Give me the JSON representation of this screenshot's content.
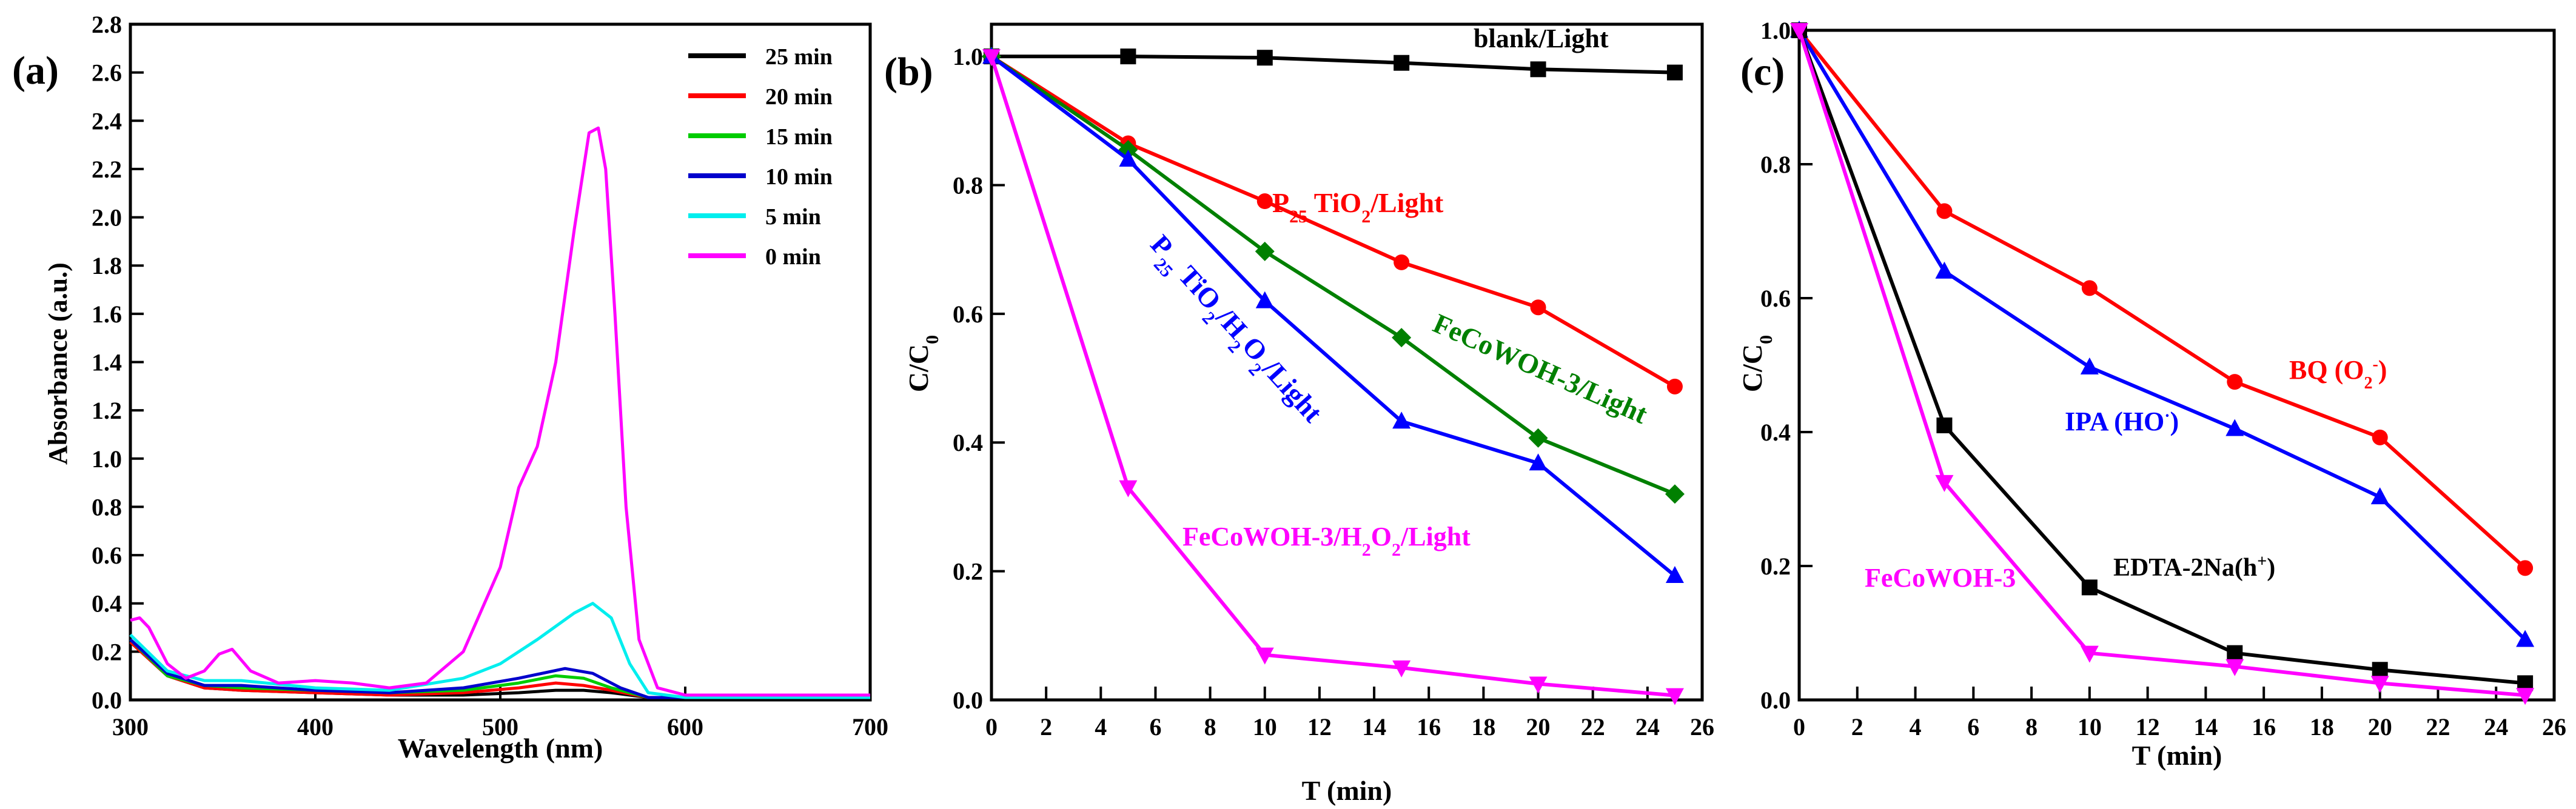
{
  "chart_data": [
    {
      "panel": "(a)",
      "type": "line",
      "xlabel": "Wavelength (nm)",
      "ylabel": "Absorbance (a.u.)",
      "xlim": [
        300,
        700
      ],
      "ylim": [
        0,
        2.8
      ],
      "xticks": [
        "300",
        "400",
        "500",
        "600",
        "700"
      ],
      "yticks": [
        "0.0",
        "0.2",
        "0.4",
        "0.6",
        "0.8",
        "1.0",
        "1.2",
        "1.4",
        "1.6",
        "1.8",
        "2.0",
        "2.2",
        "2.4",
        "2.6",
        "2.8"
      ],
      "legend_placement": "top-right",
      "grid": false,
      "series": [
        {
          "name": "25 min",
          "color": "#000000",
          "x": [
            300,
            320,
            340,
            360,
            400,
            440,
            480,
            510,
            530,
            545,
            560,
            580,
            600,
            700
          ],
          "y": [
            0.24,
            0.1,
            0.05,
            0.04,
            0.03,
            0.02,
            0.02,
            0.03,
            0.04,
            0.04,
            0.03,
            0.01,
            0.01,
            0.01
          ]
        },
        {
          "name": "20 min",
          "color": "#ff0000",
          "x": [
            300,
            320,
            340,
            360,
            400,
            440,
            480,
            510,
            530,
            545,
            560,
            580,
            600,
            700
          ],
          "y": [
            0.24,
            0.1,
            0.05,
            0.04,
            0.03,
            0.02,
            0.03,
            0.05,
            0.07,
            0.06,
            0.04,
            0.01,
            0.01,
            0.01
          ]
        },
        {
          "name": "15 min",
          "color": "#00cc00",
          "x": [
            300,
            320,
            340,
            360,
            400,
            440,
            480,
            510,
            530,
            545,
            560,
            580,
            600,
            700
          ],
          "y": [
            0.25,
            0.1,
            0.06,
            0.05,
            0.04,
            0.03,
            0.04,
            0.07,
            0.1,
            0.09,
            0.05,
            0.01,
            0.01,
            0.01
          ]
        },
        {
          "name": "10 min",
          "color": "#0000cc",
          "x": [
            300,
            320,
            340,
            360,
            400,
            440,
            480,
            510,
            535,
            550,
            565,
            580,
            600,
            700
          ],
          "y": [
            0.25,
            0.11,
            0.06,
            0.06,
            0.04,
            0.03,
            0.05,
            0.09,
            0.13,
            0.11,
            0.05,
            0.01,
            0.01,
            0.01
          ]
        },
        {
          "name": "5 min",
          "color": "#00eeee",
          "x": [
            300,
            320,
            340,
            360,
            400,
            440,
            480,
            500,
            520,
            540,
            550,
            560,
            570,
            580,
            600,
            700
          ],
          "y": [
            0.27,
            0.12,
            0.08,
            0.08,
            0.05,
            0.04,
            0.09,
            0.15,
            0.25,
            0.36,
            0.4,
            0.34,
            0.15,
            0.03,
            0.01,
            0.01
          ]
        },
        {
          "name": "0 min",
          "color": "#ff00ff",
          "x": [
            300,
            305,
            310,
            320,
            330,
            340,
            348,
            355,
            365,
            380,
            400,
            420,
            440,
            460,
            480,
            500,
            510,
            520,
            530,
            540,
            548,
            553,
            557,
            562,
            568,
            575,
            585,
            600,
            650,
            700
          ],
          "y": [
            0.33,
            0.34,
            0.3,
            0.15,
            0.09,
            0.12,
            0.19,
            0.21,
            0.12,
            0.07,
            0.08,
            0.07,
            0.05,
            0.07,
            0.2,
            0.55,
            0.88,
            1.05,
            1.4,
            1.95,
            2.35,
            2.37,
            2.2,
            1.6,
            0.8,
            0.25,
            0.05,
            0.02,
            0.02,
            0.02
          ]
        }
      ]
    },
    {
      "panel": "(b)",
      "type": "line",
      "xlabel": "T (min)",
      "ylabel": "C/C",
      "ylabel_sub": "0",
      "xlim": [
        0,
        26
      ],
      "ylim": [
        0,
        1.05
      ],
      "xticks": [
        "0",
        "2",
        "4",
        "6",
        "8",
        "10",
        "12",
        "14",
        "16",
        "18",
        "20",
        "22",
        "24",
        "26"
      ],
      "yticks": [
        "0.0",
        "0.2",
        "0.4",
        "0.6",
        "0.8",
        "1.0"
      ],
      "grid": false,
      "series": [
        {
          "label_main": "blank/Light",
          "color": "#000000",
          "marker": "square",
          "x": [
            0,
            5,
            10,
            15,
            20,
            25
          ],
          "y": [
            1.0,
            1.0,
            0.998,
            0.99,
            0.98,
            0.975
          ]
        },
        {
          "label_main": "P25 TiO2/Light",
          "color": "#ff0000",
          "marker": "circle",
          "x": [
            0,
            5,
            10,
            15,
            20,
            25
          ],
          "y": [
            1.0,
            0.865,
            0.775,
            0.68,
            0.61,
            0.487
          ]
        },
        {
          "label_main": "FeCoWOH-3/Light",
          "color": "#008000",
          "marker": "diamond",
          "x": [
            0,
            5,
            10,
            15,
            20,
            25
          ],
          "y": [
            1.0,
            0.855,
            0.697,
            0.563,
            0.407,
            0.32
          ]
        },
        {
          "label_main": "P25 TiO2/H2O2/Light",
          "color": "#0000ff",
          "marker": "triangle-up",
          "x": [
            0,
            5,
            10,
            15,
            20,
            25
          ],
          "y": [
            1.0,
            0.84,
            0.62,
            0.433,
            0.368,
            0.193
          ]
        },
        {
          "label_main": "FeCoWOH-3/H2O2/Light",
          "color": "#ff00ff",
          "marker": "triangle-down",
          "x": [
            0,
            5,
            10,
            15,
            20,
            25
          ],
          "y": [
            1.0,
            0.33,
            0.07,
            0.05,
            0.025,
            0.007
          ]
        }
      ],
      "annotations": {
        "blank_light": "blank/Light",
        "p25_light": {
          "p": "P",
          "sub25": "25",
          "tio": " TiO",
          "sub2": "2",
          "rest": "/Light"
        },
        "fecowoh_light": "FeCoWOH-3/Light",
        "p25_h2o2": {
          "p": "P",
          "sub25": "25",
          "tio": " TiO",
          "sub2a": "2",
          "h": "/H",
          "sub2b": "2",
          "o": "O",
          "sub2c": "2",
          "rest": "/Light"
        },
        "fecowoh_h2o2": {
          "pre": "FeCoWOH-3/H",
          "sub2a": "2",
          "o": "O",
          "sub2b": "2",
          "rest": "/Light"
        }
      }
    },
    {
      "panel": "(c)",
      "type": "line",
      "xlabel": "T (min)",
      "ylabel": "C/C",
      "ylabel_sub": "0",
      "xlim": [
        0,
        26
      ],
      "ylim": [
        0,
        1.0
      ],
      "xticks": [
        "0",
        "2",
        "4",
        "6",
        "8",
        "10",
        "12",
        "14",
        "16",
        "18",
        "20",
        "22",
        "24",
        "26"
      ],
      "yticks": [
        "0.0",
        "0.2",
        "0.4",
        "0.6",
        "0.8",
        "1.0"
      ],
      "grid": false,
      "series": [
        {
          "label_main": "BQ (O2-)",
          "color": "#ff0000",
          "marker": "circle",
          "x": [
            0,
            5,
            10,
            15,
            20,
            25
          ],
          "y": [
            1.0,
            0.73,
            0.615,
            0.475,
            0.392,
            0.197
          ]
        },
        {
          "label_main": "IPA (HO·)",
          "color": "#0000ff",
          "marker": "triangle-up",
          "x": [
            0,
            5,
            10,
            15,
            20,
            25
          ],
          "y": [
            1.0,
            0.64,
            0.497,
            0.405,
            0.303,
            0.09
          ]
        },
        {
          "label_main": "EDTA-2Na(h+)",
          "color": "#000000",
          "marker": "square",
          "x": [
            0,
            5,
            10,
            15,
            20,
            25
          ],
          "y": [
            1.0,
            0.41,
            0.168,
            0.07,
            0.045,
            0.025
          ]
        },
        {
          "label_main": "FeCoWOH-3",
          "color": "#ff00ff",
          "marker": "triangle-down",
          "x": [
            0,
            5,
            10,
            15,
            20,
            25
          ],
          "y": [
            1.0,
            0.325,
            0.07,
            0.05,
            0.025,
            0.007
          ]
        }
      ],
      "annotations": {
        "bq": {
          "main": "BQ (O",
          "sub": "2",
          "sup": "-",
          "close": ")"
        },
        "ipa": {
          "main": "IPA (HO",
          "sup": "·",
          "close": ")"
        },
        "edta": {
          "main": "EDTA-2Na(h",
          "sup": "+",
          "close": ")"
        },
        "fecowoh": "FeCoWOH-3"
      }
    }
  ]
}
